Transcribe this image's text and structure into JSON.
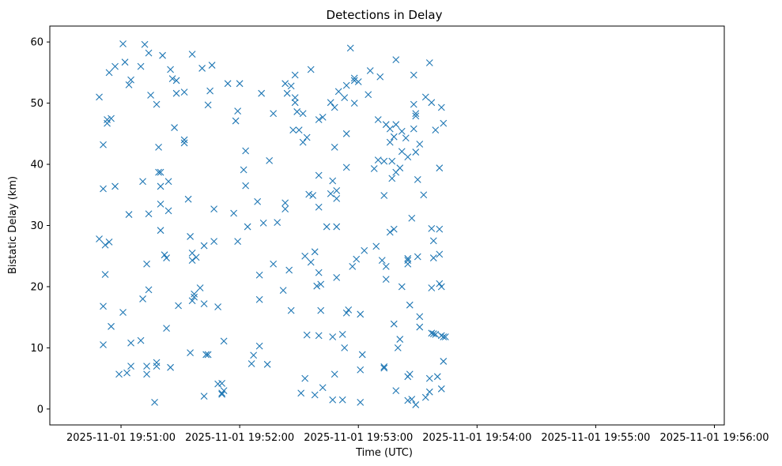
{
  "chart_data": {
    "type": "scatter",
    "title": "Detections in Delay",
    "xlabel": "Time (UTC)",
    "ylabel": "Bistatic Delay (km)",
    "marker": "x",
    "color": "#1f77b4",
    "xlim": [
      "2025-11-01 19:50:24",
      "2025-11-01 19:56:05"
    ],
    "ylim": [
      -2.6,
      62.6
    ],
    "xticks": [
      {
        "t": "2025-11-01 19:51:00",
        "label": "2025-11-01 19:51:00"
      },
      {
        "t": "2025-11-01 19:52:00",
        "label": "2025-11-01 19:52:00"
      },
      {
        "t": "2025-11-01 19:53:00",
        "label": "2025-11-01 19:53:00"
      },
      {
        "t": "2025-11-01 19:54:00",
        "label": "2025-11-01 19:54:00"
      },
      {
        "t": "2025-11-01 19:55:00",
        "label": "2025-11-01 19:55:00"
      },
      {
        "t": "2025-11-01 19:56:00",
        "label": "2025-11-01 19:56:00"
      }
    ],
    "yticks": [
      0,
      10,
      20,
      30,
      40,
      50,
      60
    ],
    "series": [
      {
        "name": "detections",
        "points": [
          [
            25,
            51
          ],
          [
            25,
            27.8
          ],
          [
            27,
            36
          ],
          [
            27,
            10.5
          ],
          [
            27,
            43.2
          ],
          [
            27,
            16.8
          ],
          [
            28,
            26.8
          ],
          [
            28,
            22
          ],
          [
            29,
            46.7
          ],
          [
            29,
            47.3
          ],
          [
            30,
            27.3
          ],
          [
            30,
            55
          ],
          [
            31,
            47.5
          ],
          [
            31,
            13.5
          ],
          [
            33,
            56
          ],
          [
            33,
            36.4
          ],
          [
            35,
            5.7
          ],
          [
            37,
            15.8
          ],
          [
            37,
            59.7
          ],
          [
            38,
            56.7
          ],
          [
            39,
            5.9
          ],
          [
            40,
            31.8
          ],
          [
            40,
            53
          ],
          [
            41,
            53.8
          ],
          [
            41,
            7
          ],
          [
            41,
            10.8
          ],
          [
            46,
            11.2
          ],
          [
            46,
            56
          ],
          [
            47,
            37.2
          ],
          [
            47,
            18
          ],
          [
            48,
            59.6
          ],
          [
            49,
            23.7
          ],
          [
            49,
            7
          ],
          [
            49,
            5.7
          ],
          [
            50,
            19.5
          ],
          [
            50,
            31.9
          ],
          [
            50,
            58.2
          ],
          [
            51,
            51.3
          ],
          [
            53,
            1.1
          ],
          [
            54,
            7.6
          ],
          [
            54,
            7
          ],
          [
            54,
            49.8
          ],
          [
            55,
            38.7
          ],
          [
            55,
            42.8
          ],
          [
            56,
            38.7
          ],
          [
            56,
            29.2
          ],
          [
            56,
            33.5
          ],
          [
            56,
            36.4
          ],
          [
            57,
            57.8
          ],
          [
            58,
            25.2
          ],
          [
            59,
            24.7
          ],
          [
            59,
            13.2
          ],
          [
            60,
            37.2
          ],
          [
            60,
            32.4
          ],
          [
            61,
            55.5
          ],
          [
            61,
            6.8
          ],
          [
            62,
            54
          ],
          [
            63,
            46
          ],
          [
            64,
            53.7
          ],
          [
            64,
            51.6
          ],
          [
            65,
            16.9
          ],
          [
            68,
            51.8
          ],
          [
            68,
            44
          ],
          [
            68,
            43.5
          ],
          [
            70,
            34.3
          ],
          [
            71,
            9.2
          ],
          [
            71,
            28.2
          ],
          [
            72,
            24.3
          ],
          [
            72,
            25.5
          ],
          [
            72,
            58
          ],
          [
            72,
            17.7
          ],
          [
            73,
            18.8
          ],
          [
            73,
            18.3
          ],
          [
            74,
            24.8
          ],
          [
            76,
            19.8
          ],
          [
            77,
            55.7
          ],
          [
            78,
            26.7
          ],
          [
            78,
            17.2
          ],
          [
            78,
            2.1
          ],
          [
            79,
            8.9
          ],
          [
            80,
            8.9
          ],
          [
            80,
            49.7
          ],
          [
            81,
            52
          ],
          [
            82,
            56.2
          ],
          [
            83,
            32.7
          ],
          [
            83,
            27.4
          ],
          [
            85,
            4.1
          ],
          [
            85,
            16.7
          ],
          [
            87,
            2.4
          ],
          [
            87,
            4.2
          ],
          [
            87,
            2.6
          ],
          [
            88,
            3
          ],
          [
            88,
            11.1
          ],
          [
            90,
            53.2
          ],
          [
            93,
            32
          ],
          [
            94,
            47.1
          ],
          [
            95,
            27.4
          ],
          [
            95,
            48.7
          ],
          [
            96,
            53.2
          ],
          [
            98,
            39.1
          ],
          [
            99,
            36.5
          ],
          [
            99,
            42.2
          ],
          [
            100,
            29.8
          ],
          [
            102,
            7.4
          ],
          [
            103,
            8.8
          ],
          [
            105,
            33.9
          ],
          [
            106,
            10.3
          ],
          [
            106,
            21.9
          ],
          [
            106,
            17.9
          ],
          [
            107,
            51.6
          ],
          [
            108,
            30.4
          ],
          [
            110,
            7.3
          ],
          [
            111,
            40.6
          ],
          [
            113,
            48.3
          ],
          [
            113,
            23.7
          ],
          [
            115,
            30.5
          ],
          [
            118,
            19.4
          ],
          [
            119,
            33.7
          ],
          [
            119,
            32.7
          ],
          [
            119,
            53.2
          ],
          [
            120,
            51.6
          ],
          [
            121,
            22.7
          ],
          [
            122,
            16.1
          ],
          [
            122,
            52.8
          ],
          [
            123,
            45.6
          ],
          [
            124,
            54.6
          ],
          [
            124,
            50.1
          ],
          [
            124,
            50.9
          ],
          [
            125,
            48.6
          ],
          [
            126,
            45.6
          ],
          [
            127,
            2.6
          ],
          [
            128,
            43.6
          ],
          [
            128,
            48.3
          ],
          [
            129,
            25
          ],
          [
            129,
            5
          ],
          [
            130,
            44.4
          ],
          [
            130,
            12.1
          ],
          [
            131,
            35.1
          ],
          [
            132,
            24
          ],
          [
            132,
            55.5
          ],
          [
            133,
            34.9
          ],
          [
            134,
            25.7
          ],
          [
            134,
            2.3
          ],
          [
            135,
            20.1
          ],
          [
            136,
            33
          ],
          [
            136,
            47.3
          ],
          [
            136,
            38.2
          ],
          [
            136,
            22.3
          ],
          [
            136,
            12
          ],
          [
            137,
            20.4
          ],
          [
            137,
            16.1
          ],
          [
            138,
            47.7
          ],
          [
            138,
            3.5
          ],
          [
            140,
            29.8
          ],
          [
            142,
            35.2
          ],
          [
            142,
            50.1
          ],
          [
            143,
            37.3
          ],
          [
            143,
            11.8
          ],
          [
            143,
            1.5
          ],
          [
            144,
            49.3
          ],
          [
            144,
            5.7
          ],
          [
            144,
            42.8
          ],
          [
            145,
            34.4
          ],
          [
            145,
            35.7
          ],
          [
            145,
            21.5
          ],
          [
            145,
            29.8
          ],
          [
            146,
            51.9
          ],
          [
            148,
            12.2
          ],
          [
            148,
            1.5
          ],
          [
            149,
            50.9
          ],
          [
            149,
            10
          ],
          [
            150,
            52.9
          ],
          [
            150,
            45
          ],
          [
            150,
            39.5
          ],
          [
            150,
            15.7
          ],
          [
            151,
            16.2
          ],
          [
            152,
            59
          ],
          [
            153,
            23.3
          ],
          [
            154,
            50
          ],
          [
            154,
            53.7
          ],
          [
            154,
            54.1
          ],
          [
            155,
            24.5
          ],
          [
            156,
            53.5
          ],
          [
            157,
            15.5
          ],
          [
            157,
            6.4
          ],
          [
            157,
            1.1
          ],
          [
            158,
            8.9
          ],
          [
            159,
            25.9
          ],
          [
            161,
            51.4
          ],
          [
            162,
            55.3
          ],
          [
            164,
            39.3
          ],
          [
            165,
            26.6
          ],
          [
            166,
            47.3
          ],
          [
            166,
            40.7
          ],
          [
            167,
            54.3
          ],
          [
            168,
            24.3
          ],
          [
            169,
            6.9
          ],
          [
            169,
            6.7
          ],
          [
            169,
            40.5
          ],
          [
            169,
            34.9
          ],
          [
            170,
            46.5
          ],
          [
            170,
            23.3
          ],
          [
            170,
            21.2
          ],
          [
            172,
            45.8
          ],
          [
            172,
            43.6
          ],
          [
            172,
            28.9
          ],
          [
            173,
            40.5
          ],
          [
            173,
            37.7
          ],
          [
            174,
            44.5
          ],
          [
            174,
            29.4
          ],
          [
            174,
            13.9
          ],
          [
            175,
            46.5
          ],
          [
            175,
            38.7
          ],
          [
            175,
            57.1
          ],
          [
            175,
            3
          ],
          [
            176,
            10
          ],
          [
            177,
            39.4
          ],
          [
            177,
            11.4
          ],
          [
            178,
            45.4
          ],
          [
            178,
            20
          ],
          [
            178,
            42.1
          ],
          [
            180,
            44.3
          ],
          [
            181,
            23.7
          ],
          [
            181,
            24.3
          ],
          [
            181,
            24.6
          ],
          [
            181,
            41.2
          ],
          [
            181,
            5.3
          ],
          [
            181,
            1.4
          ],
          [
            182,
            5.7
          ],
          [
            182,
            17
          ],
          [
            183,
            1.6
          ],
          [
            183,
            31.2
          ],
          [
            184,
            54.6
          ],
          [
            184,
            49.8
          ],
          [
            184,
            45.8
          ],
          [
            185,
            42
          ],
          [
            185,
            48.3
          ],
          [
            185,
            47.9
          ],
          [
            185,
            0.7
          ],
          [
            186,
            24.9
          ],
          [
            186,
            37.5
          ],
          [
            187,
            43.3
          ],
          [
            187,
            15.1
          ],
          [
            187,
            13.4
          ],
          [
            189,
            35
          ],
          [
            190,
            51
          ],
          [
            190,
            1.9
          ],
          [
            192,
            56.6
          ],
          [
            192,
            5
          ],
          [
            192,
            2.8
          ],
          [
            193,
            50.1
          ],
          [
            193,
            29.5
          ],
          [
            193,
            12.4
          ],
          [
            193,
            19.8
          ],
          [
            194,
            27.5
          ],
          [
            194,
            24.7
          ],
          [
            194,
            12.3
          ],
          [
            195,
            12.2
          ],
          [
            195,
            45.6
          ],
          [
            196,
            5.3
          ],
          [
            197,
            39.4
          ],
          [
            197,
            25.3
          ],
          [
            197,
            20.5
          ],
          [
            197,
            29.4
          ],
          [
            198,
            20
          ],
          [
            198,
            12
          ],
          [
            198,
            3.3
          ],
          [
            198,
            49.3
          ],
          [
            199,
            46.7
          ],
          [
            199,
            11.8
          ],
          [
            199,
            7.8
          ],
          [
            200,
            11.8
          ]
        ]
      }
    ]
  }
}
